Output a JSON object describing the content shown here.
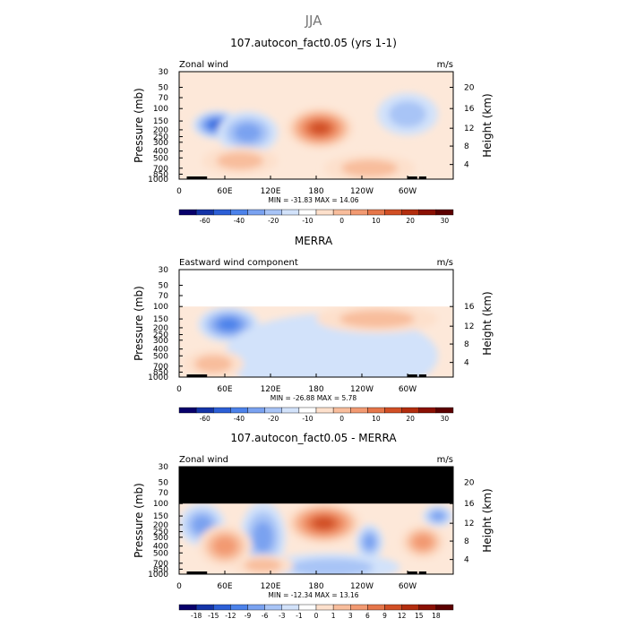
{
  "figure": {
    "title": "JJA"
  },
  "chart_data": [
    {
      "type": "heatmap",
      "title": "107.autocon_fact0.05 (yrs 1-1)",
      "subtitle_left": "Zonal wind",
      "subtitle_right": "m/s",
      "ylabel": "Pressure (mb)",
      "ylabel_right": "Height (km)",
      "pressure_ticks": [
        "30",
        "50",
        "70",
        "100",
        "150",
        "200",
        "250",
        "300",
        "400",
        "500",
        "700",
        "850",
        "1000"
      ],
      "height_ticks": [
        "20",
        "16",
        "12",
        "8",
        "4"
      ],
      "lon_ticks": [
        "0",
        "60E",
        "120E",
        "180",
        "120W",
        "60W"
      ],
      "stats": "MIN = -31.83   MAX =  14.06",
      "colorbar_levels": [
        "-60",
        "-40",
        "-20",
        "-10",
        "0",
        "10",
        "20",
        "30"
      ],
      "colorbar_colors": [
        "#08006b",
        "#1434a8",
        "#2c5fd6",
        "#4c82ea",
        "#7aa2f0",
        "#a8c4f6",
        "#d2e2fa",
        "#ffffff",
        "#fde0cc",
        "#f8bd9c",
        "#f29a72",
        "#e5764a",
        "#d14f25",
        "#b32d0e",
        "#8a1003",
        "#5c0000"
      ],
      "fields": [
        {
          "kind": "neg",
          "lon_center": 50,
          "p_center": 170,
          "lon_half": 32,
          "p_span_log": 0.2,
          "strength": 0.9
        },
        {
          "kind": "neg",
          "lon_center": 90,
          "p_center": 220,
          "lon_half": 40,
          "p_span_log": 0.3,
          "strength": 0.55
        },
        {
          "kind": "pos",
          "lon_center": 185,
          "p_center": 190,
          "lon_half": 45,
          "p_span_log": 0.3,
          "strength": 0.9
        },
        {
          "kind": "pos",
          "lon_center": 80,
          "p_center": 550,
          "lon_half": 50,
          "p_span_log": 0.2,
          "strength": 0.45
        },
        {
          "kind": "pos",
          "lon_center": 250,
          "p_center": 700,
          "lon_half": 60,
          "p_span_log": 0.2,
          "strength": 0.3
        },
        {
          "kind": "neg",
          "lon_center": 300,
          "p_center": 120,
          "lon_half": 40,
          "p_span_log": 0.3,
          "strength": 0.4
        }
      ],
      "masked_above_mb": null
    },
    {
      "type": "heatmap",
      "title": "MERRA",
      "subtitle_left": "Eastward wind component",
      "subtitle_right": "m/s",
      "ylabel": "Pressure (mb)",
      "ylabel_right": "Height (km)",
      "pressure_ticks": [
        "30",
        "50",
        "70",
        "100",
        "150",
        "200",
        "250",
        "300",
        "400",
        "500",
        "700",
        "850",
        "1000"
      ],
      "height_ticks": [
        "16",
        "12",
        "8",
        "4"
      ],
      "lon_ticks": [
        "0",
        "60E",
        "120E",
        "180",
        "120W",
        "60W"
      ],
      "stats": "MIN = -26.88   MAX =   5.78",
      "colorbar_levels": [
        "-60",
        "-40",
        "-20",
        "-10",
        "0",
        "10",
        "20",
        "30"
      ],
      "colorbar_colors": [
        "#08006b",
        "#1434a8",
        "#2c5fd6",
        "#4c82ea",
        "#7aa2f0",
        "#a8c4f6",
        "#d2e2fa",
        "#ffffff",
        "#fde0cc",
        "#f8bd9c",
        "#f29a72",
        "#e5764a",
        "#d14f25",
        "#b32d0e",
        "#8a1003",
        "#5c0000"
      ],
      "fields": [
        {
          "kind": "neg",
          "lon_center": 65,
          "p_center": 180,
          "lon_half": 40,
          "p_span_log": 0.25,
          "strength": 0.85
        },
        {
          "kind": "neg",
          "lon_center": 200,
          "p_center": 500,
          "lon_half": 140,
          "p_span_log": 0.6,
          "strength": 0.25
        },
        {
          "kind": "pos",
          "lon_center": 260,
          "p_center": 150,
          "lon_half": 80,
          "p_span_log": 0.2,
          "strength": 0.3
        },
        {
          "kind": "pos",
          "lon_center": 45,
          "p_center": 650,
          "lon_half": 40,
          "p_span_log": 0.2,
          "strength": 0.35
        }
      ],
      "masked_above_mb": 100,
      "mask_color": "#ffffff"
    },
    {
      "type": "heatmap",
      "title": "107.autocon_fact0.05 - MERRA",
      "subtitle_left": "Zonal wind",
      "subtitle_right": "m/s",
      "ylabel": "Pressure (mb)",
      "ylabel_right": "Height (km)",
      "pressure_ticks": [
        "30",
        "50",
        "70",
        "100",
        "150",
        "200",
        "250",
        "300",
        "400",
        "500",
        "700",
        "850",
        "1000"
      ],
      "height_ticks": [
        "20",
        "16",
        "12",
        "8",
        "4"
      ],
      "lon_ticks": [
        "0",
        "60E",
        "120E",
        "180",
        "120W",
        "60W"
      ],
      "stats": "MIN = -12.34   MAX =  13.16",
      "colorbar_levels": [
        "-18",
        "-15",
        "-12",
        "-9",
        "-6",
        "-3",
        "-1",
        "0",
        "1",
        "3",
        "6",
        "9",
        "12",
        "15",
        "18"
      ],
      "colorbar_colors": [
        "#08006b",
        "#1434a8",
        "#2c5fd6",
        "#4c82ea",
        "#7aa2f0",
        "#a8c4f6",
        "#d2e2fa",
        "#ffffff",
        "#fde0cc",
        "#f8bd9c",
        "#f29a72",
        "#e5764a",
        "#d14f25",
        "#b32d0e",
        "#8a1003",
        "#5c0000"
      ],
      "fields": [
        {
          "kind": "pos",
          "lon_center": 190,
          "p_center": 190,
          "lon_half": 50,
          "p_span_log": 0.3,
          "strength": 0.95
        },
        {
          "kind": "neg",
          "lon_center": 30,
          "p_center": 200,
          "lon_half": 30,
          "p_span_log": 0.3,
          "strength": 0.6
        },
        {
          "kind": "neg",
          "lon_center": 110,
          "p_center": 300,
          "lon_half": 30,
          "p_span_log": 0.5,
          "strength": 0.5
        },
        {
          "kind": "pos",
          "lon_center": 60,
          "p_center": 400,
          "lon_half": 35,
          "p_span_log": 0.3,
          "strength": 0.55
        },
        {
          "kind": "pos",
          "lon_center": 320,
          "p_center": 350,
          "lon_half": 30,
          "p_span_log": 0.25,
          "strength": 0.6
        },
        {
          "kind": "neg",
          "lon_center": 250,
          "p_center": 350,
          "lon_half": 18,
          "p_span_log": 0.25,
          "strength": 0.5
        },
        {
          "kind": "neg",
          "lon_center": 200,
          "p_center": 800,
          "lon_half": 90,
          "p_span_log": 0.2,
          "strength": 0.4
        },
        {
          "kind": "neg",
          "lon_center": 340,
          "p_center": 150,
          "lon_half": 20,
          "p_span_log": 0.15,
          "strength": 0.5
        },
        {
          "kind": "pos",
          "lon_center": 110,
          "p_center": 750,
          "lon_half": 40,
          "p_span_log": 0.15,
          "strength": 0.4
        }
      ],
      "masked_above_mb": 100,
      "mask_color": "#000000"
    }
  ]
}
